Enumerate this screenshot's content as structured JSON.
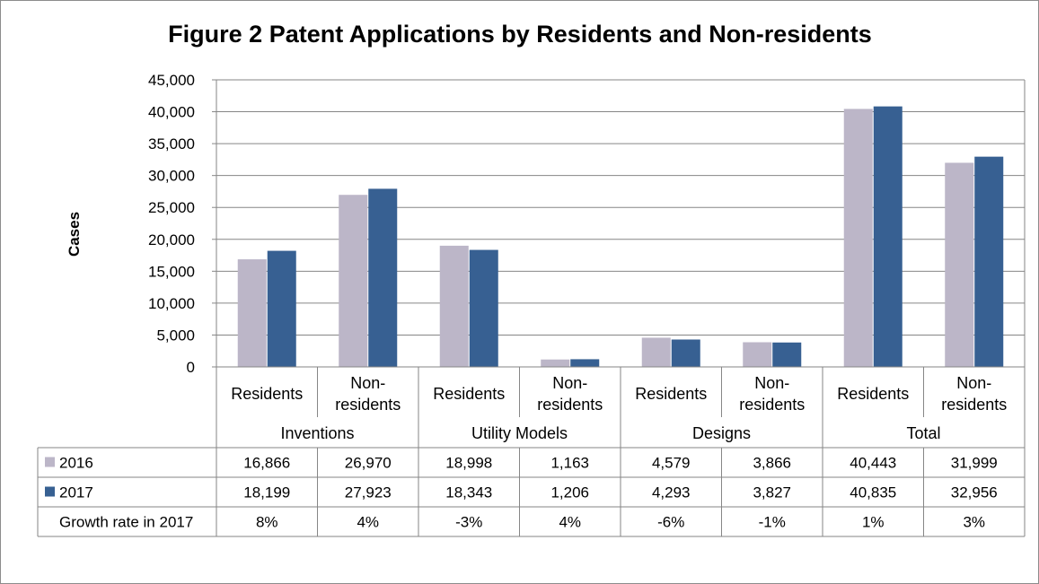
{
  "chart_data": {
    "type": "bar",
    "title": "Figure 2 Patent Applications by Residents and Non-residents",
    "ylabel": "Cases",
    "xlabel": "",
    "ylim": [
      0,
      45000
    ],
    "yticks": [
      "0",
      "5,000",
      "10,000",
      "15,000",
      "20,000",
      "25,000",
      "30,000",
      "35,000",
      "40,000",
      "45,000"
    ],
    "grid": true,
    "groups": [
      "Inventions",
      "Utility Models",
      "Designs",
      "Total"
    ],
    "categories": [
      [
        "Residents"
      ],
      [
        "Non-",
        "residents"
      ],
      [
        "Residents"
      ],
      [
        "Non-",
        "residents"
      ],
      [
        "Residents"
      ],
      [
        "Non-",
        "residents"
      ],
      [
        "Residents"
      ],
      [
        "Non-",
        "residents"
      ]
    ],
    "series": [
      {
        "name": "2016",
        "color": "#bcb6c8",
        "values": [
          16866,
          26970,
          18998,
          1163,
          4579,
          3866,
          40443,
          31999
        ]
      },
      {
        "name": "2017",
        "color": "#376092",
        "values": [
          18199,
          27923,
          18343,
          1206,
          4293,
          3827,
          40835,
          32956
        ]
      }
    ],
    "table": {
      "rows": [
        {
          "label": "2016",
          "marker": "#bcb6c8",
          "cells": [
            "16,866",
            "26,970",
            "18,998",
            "1,163",
            "4,579",
            "3,866",
            "40,443",
            "31,999"
          ]
        },
        {
          "label": "2017",
          "marker": "#376092",
          "cells": [
            "18,199",
            "27,923",
            "18,343",
            "1,206",
            "4,293",
            "3,827",
            "40,835",
            "32,956"
          ]
        },
        {
          "label": "Growth rate in 2017",
          "marker": null,
          "cells": [
            "8%",
            "4%",
            "-3%",
            "4%",
            "-6%",
            "-1%",
            "1%",
            "3%"
          ]
        }
      ]
    }
  }
}
